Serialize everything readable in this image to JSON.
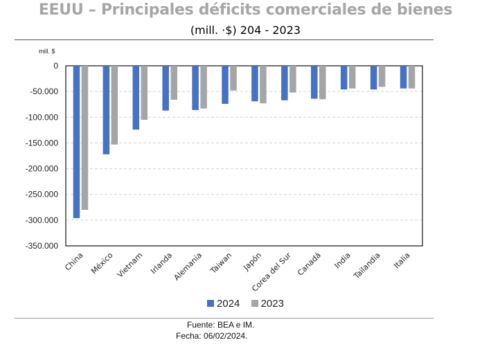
{
  "header": {
    "title": "EEUU – Principales déficits comerciales de bienes",
    "subtitle": "(mill. ·$) 204 - 2023"
  },
  "footer": {
    "source": "Fuente: BEA e IM.",
    "date": "Fecha: 06/02/2024."
  },
  "colors": {
    "2024": "#4472c4",
    "2023": "#a5a5a5"
  },
  "chart_data": {
    "type": "bar",
    "title": "EEUU – Principales déficits comerciales de bienes",
    "subtitle": "(mill. ·$) 204 - 2023",
    "xlabel": "",
    "ylabel": "mill. $",
    "ylim": [
      -350000,
      0
    ],
    "yticks": [
      0,
      -50000,
      -100000,
      -150000,
      -200000,
      -250000,
      -300000,
      -350000
    ],
    "ytick_labels": [
      "0",
      "-50.000",
      "-100.000",
      "-150.000",
      "-200.000",
      "-250.000",
      "-300.000",
      "-350.000"
    ],
    "grid": true,
    "legend_position": "bottom",
    "categories": [
      "China",
      "México",
      "Vietnam",
      "Irlanda",
      "Alemania",
      "Taiwan",
      "Japón",
      "Corea del Sur",
      "Canadá",
      "India",
      "Tailandia",
      "Italia"
    ],
    "series": [
      {
        "name": "2024",
        "values": [
          -296000,
          -172000,
          -124000,
          -87000,
          -86000,
          -74000,
          -69000,
          -67000,
          -64000,
          -46000,
          -46000,
          -44000
        ]
      },
      {
        "name": "2023",
        "values": [
          -280000,
          -153000,
          -105000,
          -66000,
          -83000,
          -48000,
          -73000,
          -52000,
          -65000,
          -44000,
          -41000,
          -44000
        ]
      }
    ]
  }
}
